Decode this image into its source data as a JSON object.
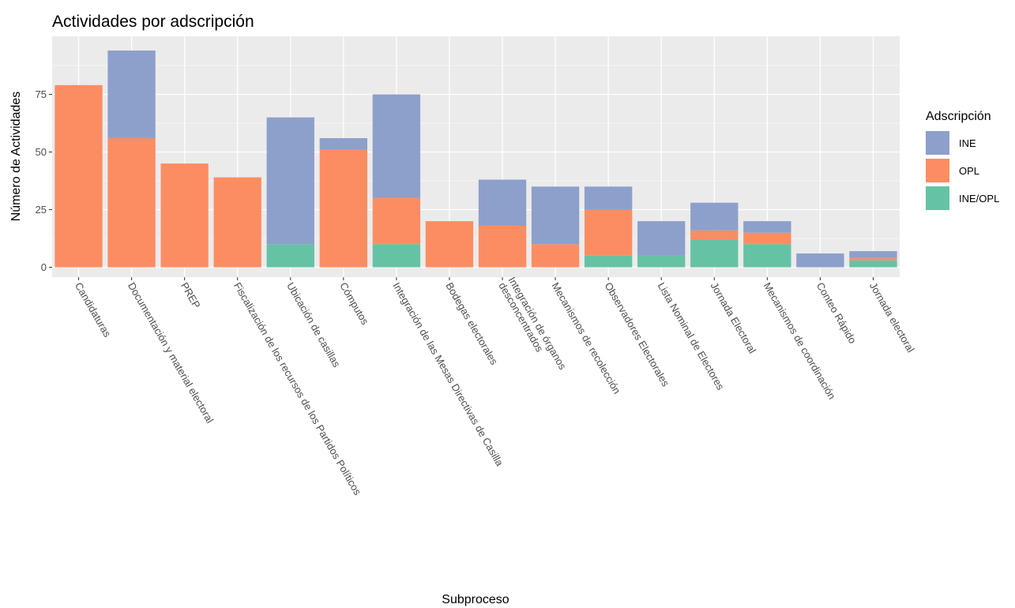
{
  "chart_data": {
    "type": "bar",
    "stacked": true,
    "title": "Actividades por adscripción",
    "xlabel": "Subproceso",
    "ylabel": "Número de Actividades",
    "ylim": [
      0,
      98
    ],
    "yticks": [
      0,
      25,
      50,
      75
    ],
    "grid": true,
    "legend": {
      "title": "Adscripción",
      "position": "right"
    },
    "categories": [
      "Candidaturas",
      "Documentación y material electoral",
      "PREP",
      "Fiscalización de los recursos de los Partidos Políticos",
      "Ubicación de casillas",
      "Cómputos",
      "Integración de las Mesas Directivas de Casilla",
      "Bodegas electorales",
      "Integración de órganos\ndesconcentrados",
      "Mecanismos de recolección",
      "Observadores Electorales",
      "Lista Nominal de Electores",
      "Jornada Electoral",
      "Mecanismos de coordinación",
      "Conteo Rápido",
      "Jornada electoral"
    ],
    "series": [
      {
        "name": "INE/OPL",
        "color": "#66c2a5",
        "values": [
          0,
          0,
          0,
          0,
          10,
          0,
          10,
          0,
          0,
          0,
          5,
          5,
          12,
          10,
          0,
          3
        ]
      },
      {
        "name": "OPL",
        "color": "#fc8d62",
        "values": [
          79,
          56,
          45,
          39,
          0,
          51,
          20,
          20,
          18,
          10,
          20,
          0,
          4,
          5,
          0,
          1
        ]
      },
      {
        "name": "INE",
        "color": "#8da0cb",
        "values": [
          0,
          38,
          0,
          0,
          55,
          5,
          45,
          0,
          20,
          25,
          10,
          15,
          12,
          5,
          6,
          3
        ]
      }
    ],
    "legend_order": [
      "INE",
      "OPL",
      "INE/OPL"
    ]
  }
}
